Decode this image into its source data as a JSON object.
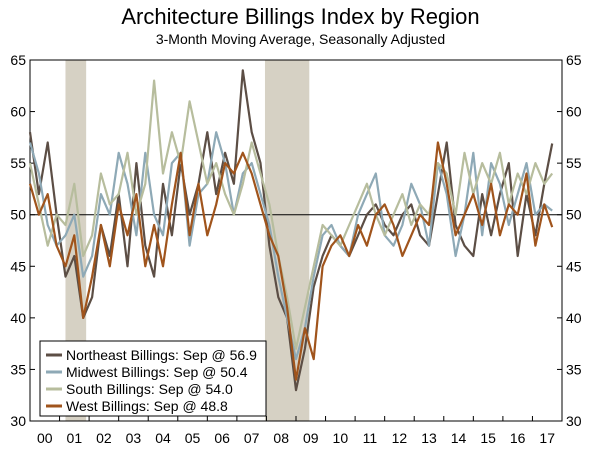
{
  "chart_data": {
    "type": "line",
    "title": "Architecture Billings Index by Region",
    "subtitle": "3-Month Moving Average, Seasonally Adjusted",
    "xlabel": "",
    "ylabel": "",
    "ylim": [
      30,
      65
    ],
    "yticks": [
      30,
      35,
      40,
      45,
      50,
      55,
      60,
      65
    ],
    "xlim": [
      2000,
      2018
    ],
    "xticks": [
      {
        "label": "00",
        "value": 2000
      },
      {
        "label": "01",
        "value": 2001
      },
      {
        "label": "02",
        "value": 2002
      },
      {
        "label": "03",
        "value": 2003
      },
      {
        "label": "04",
        "value": 2004
      },
      {
        "label": "05",
        "value": 2005
      },
      {
        "label": "06",
        "value": 2006
      },
      {
        "label": "07",
        "value": 2007
      },
      {
        "label": "08",
        "value": 2008
      },
      {
        "label": "09",
        "value": 2009
      },
      {
        "label": "10",
        "value": 2010
      },
      {
        "label": "11",
        "value": 2011
      },
      {
        "label": "12",
        "value": 2012
      },
      {
        "label": "13",
        "value": 2013
      },
      {
        "label": "14",
        "value": 2014
      },
      {
        "label": "15",
        "value": 2015
      },
      {
        "label": "16",
        "value": 2016
      },
      {
        "label": "17",
        "value": 2017
      }
    ],
    "reference_line": 50,
    "recessions": [
      [
        2001.2,
        2001.9
      ],
      [
        2007.95,
        2009.45
      ]
    ],
    "grid": false,
    "legend_position": "bottom-left",
    "series": [
      {
        "name": "Northeast Billings: Sep @ 56.9",
        "color": "#5c4e45",
        "x": [
          2000.0,
          2000.3,
          2000.6,
          2000.9,
          2001.2,
          2001.5,
          2001.8,
          2002.1,
          2002.4,
          2002.7,
          2003.0,
          2003.3,
          2003.6,
          2003.9,
          2004.2,
          2004.5,
          2004.8,
          2005.1,
          2005.4,
          2005.7,
          2006.0,
          2006.3,
          2006.6,
          2006.9,
          2007.2,
          2007.5,
          2007.8,
          2008.1,
          2008.4,
          2008.7,
          2009.0,
          2009.3,
          2009.6,
          2009.9,
          2010.2,
          2010.5,
          2010.8,
          2011.1,
          2011.4,
          2011.7,
          2012.0,
          2012.3,
          2012.6,
          2012.9,
          2013.2,
          2013.5,
          2013.8,
          2014.1,
          2014.4,
          2014.7,
          2015.0,
          2015.3,
          2015.6,
          2015.9,
          2016.2,
          2016.5,
          2016.8,
          2017.1,
          2017.4,
          2017.67
        ],
        "values": [
          58,
          52,
          57,
          50,
          44,
          46,
          40,
          42,
          49,
          46,
          52,
          45,
          55,
          47,
          44,
          53,
          48,
          55,
          50,
          53,
          58,
          52,
          56,
          53,
          64,
          58,
          55,
          47,
          42,
          40,
          33,
          37,
          43,
          46,
          48,
          47,
          46,
          48,
          50,
          51,
          49,
          48,
          50,
          51,
          48,
          47,
          52,
          57,
          49,
          47,
          46,
          52,
          48,
          52,
          55,
          46,
          52,
          48,
          53,
          56.9
        ]
      },
      {
        "name": "Midwest Billings: Sep @ 50.4",
        "color": "#8ea9b6",
        "x": [
          2000.0,
          2000.3,
          2000.6,
          2000.9,
          2001.2,
          2001.5,
          2001.8,
          2002.1,
          2002.4,
          2002.7,
          2003.0,
          2003.3,
          2003.6,
          2003.9,
          2004.2,
          2004.5,
          2004.8,
          2005.1,
          2005.4,
          2005.7,
          2006.0,
          2006.3,
          2006.6,
          2006.9,
          2007.2,
          2007.5,
          2007.8,
          2008.1,
          2008.4,
          2008.7,
          2009.0,
          2009.3,
          2009.6,
          2009.9,
          2010.2,
          2010.5,
          2010.8,
          2011.1,
          2011.4,
          2011.7,
          2012.0,
          2012.3,
          2012.6,
          2012.9,
          2013.2,
          2013.5,
          2013.8,
          2014.1,
          2014.4,
          2014.7,
          2015.0,
          2015.3,
          2015.6,
          2015.9,
          2016.2,
          2016.5,
          2016.8,
          2017.1,
          2017.4,
          2017.67
        ],
        "values": [
          57,
          54,
          49,
          47,
          48,
          50,
          44,
          46,
          52,
          50,
          56,
          53,
          48,
          56,
          50,
          48,
          55,
          56,
          47,
          52,
          53,
          58,
          55,
          50,
          54,
          55,
          52,
          49,
          44,
          40,
          36,
          39,
          44,
          48,
          49,
          47,
          46,
          50,
          52,
          54,
          48,
          47,
          49,
          53,
          51,
          47,
          55,
          52,
          46,
          50,
          56,
          48,
          55,
          53,
          49,
          52,
          55,
          50,
          51,
          50.4
        ]
      },
      {
        "name": "South Billings: Sep @ 54.0",
        "color": "#b7bd9d",
        "x": [
          2000.0,
          2000.3,
          2000.6,
          2000.9,
          2001.2,
          2001.5,
          2001.8,
          2002.1,
          2002.4,
          2002.7,
          2003.0,
          2003.3,
          2003.6,
          2003.9,
          2004.2,
          2004.5,
          2004.8,
          2005.1,
          2005.4,
          2005.7,
          2006.0,
          2006.3,
          2006.6,
          2006.9,
          2007.2,
          2007.5,
          2007.8,
          2008.1,
          2008.4,
          2008.7,
          2009.0,
          2009.3,
          2009.6,
          2009.9,
          2010.2,
          2010.5,
          2010.8,
          2011.1,
          2011.4,
          2011.7,
          2012.0,
          2012.3,
          2012.6,
          2012.9,
          2013.2,
          2013.5,
          2013.8,
          2014.1,
          2014.4,
          2014.7,
          2015.0,
          2015.3,
          2015.6,
          2015.9,
          2016.2,
          2016.5,
          2016.8,
          2017.1,
          2017.4,
          2017.67
        ],
        "values": [
          55,
          51,
          47,
          50,
          49,
          53,
          46,
          48,
          54,
          51,
          52,
          56,
          50,
          53,
          63,
          54,
          58,
          55,
          61,
          57,
          53,
          55,
          52,
          50,
          53,
          57,
          54,
          51,
          46,
          42,
          37,
          41,
          45,
          49,
          48,
          47,
          49,
          51,
          53,
          50,
          48,
          50,
          52,
          49,
          51,
          50,
          55,
          54,
          50,
          56,
          52,
          55,
          53,
          56,
          51,
          54,
          52,
          55,
          53,
          54.0
        ]
      },
      {
        "name": "West Billings: Sep @ 48.8",
        "color": "#a0541c",
        "x": [
          2000.0,
          2000.3,
          2000.6,
          2000.9,
          2001.2,
          2001.5,
          2001.8,
          2002.1,
          2002.4,
          2002.7,
          2003.0,
          2003.3,
          2003.6,
          2003.9,
          2004.2,
          2004.5,
          2004.8,
          2005.1,
          2005.4,
          2005.7,
          2006.0,
          2006.3,
          2006.6,
          2006.9,
          2007.2,
          2007.5,
          2007.8,
          2008.1,
          2008.4,
          2008.7,
          2009.0,
          2009.3,
          2009.6,
          2009.9,
          2010.2,
          2010.5,
          2010.8,
          2011.1,
          2011.4,
          2011.7,
          2012.0,
          2012.3,
          2012.6,
          2012.9,
          2013.2,
          2013.5,
          2013.8,
          2014.1,
          2014.4,
          2014.7,
          2015.0,
          2015.3,
          2015.6,
          2015.9,
          2016.2,
          2016.5,
          2016.8,
          2017.1,
          2017.4,
          2017.67
        ],
        "values": [
          53,
          50,
          52,
          47,
          45,
          48,
          40,
          44,
          49,
          45,
          51,
          48,
          52,
          45,
          49,
          45,
          51,
          56,
          48,
          53,
          48,
          51,
          55,
          54,
          56,
          54,
          51,
          48,
          46,
          41,
          34,
          39,
          36,
          45,
          47,
          48,
          46,
          49,
          47,
          50,
          51,
          49,
          46,
          48,
          50,
          49,
          57,
          53,
          48,
          50,
          52,
          49,
          53,
          48,
          51,
          50,
          54,
          47,
          51,
          48.8
        ]
      }
    ]
  }
}
